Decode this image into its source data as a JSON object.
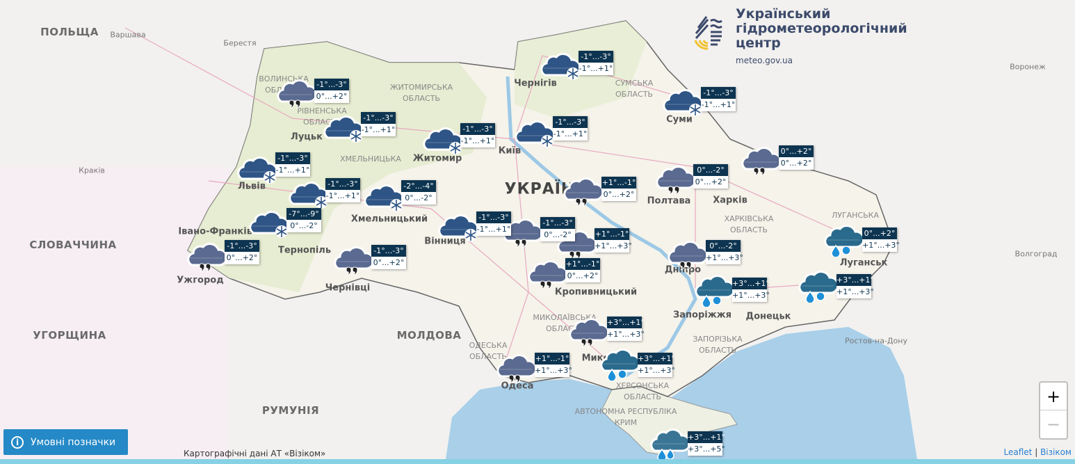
{
  "logo": {
    "line1": "Український",
    "line2": "гідрометеорологічний",
    "line3": "центр",
    "url": "meteo.gov.ua"
  },
  "places": {
    "countries": [
      "ПОЛЬЩА",
      "СЛОВАЧЧИНА",
      "УГОРЩИНА",
      "РУМУНІЯ",
      "МОЛДОВА",
      "УКРАЇНА"
    ],
    "cities": [
      "Варшава",
      "Берестя",
      "Краків",
      "Воронеж",
      "Ростов-на-Дону",
      "Волгоград",
      "Луцьк",
      "Житомир",
      "Київ",
      "Чернігів",
      "Суми",
      "Полтава",
      "Харків",
      "Дніпро",
      "Запоріжжя",
      "Донецьк",
      "Луганськ",
      "Одеса",
      "Миколаїв",
      "Вінниця",
      "Чернівці",
      "Ужгород",
      "Львів",
      "Тернопіль",
      "Івано-Франківськ",
      "Хмельницький",
      "Кропивницький"
    ],
    "regions": [
      "СУМСЬКА ОБЛАСТЬ",
      "ХАРКІВСЬКА ОБЛАСТЬ",
      "ЗАПОРІЗЬКА ОБЛАСТЬ",
      "ЛУГАНСЬКА",
      "МИКОЛАЇВСЬКА ОБЛАСТЬ",
      "ОДЕСЬКА ОБЛАСТЬ",
      "ХЕРСОНСЬКА ОБЛАСТЬ",
      "ЖИТОМИРСЬКА ОБЛАСТЬ",
      "РІВНЕНСЬКА ОБЛАСТЬ",
      "ВОЛИНСЬКА ОБЛАСТЬ",
      "ХМЕЛЬНИЦЬКА",
      "АВТОНОМНА РЕСПУБЛІКА КРИМ"
    ]
  },
  "markers": [
    {
      "icon": "cloud-drizzle",
      "night": "-1°...-3°",
      "day": "0°...+2°"
    },
    {
      "icon": "cloud-snow",
      "night": "-1°...-3°",
      "day": "-1°...+1°"
    },
    {
      "icon": "cloud-snow",
      "night": "-1°...-3°",
      "day": "-1°...+1°"
    },
    {
      "icon": "cloud-snow",
      "night": "-1°...-3°",
      "day": "-1°...+1°"
    },
    {
      "icon": "cloud-snow",
      "night": "-1°...-3°",
      "day": "-1°...+1°"
    },
    {
      "icon": "cloud-snow",
      "night": "-2°...-4°",
      "day": "0°...-2°"
    },
    {
      "icon": "cloud-snow",
      "night": "-7°...-9°",
      "day": "0°...-2°"
    },
    {
      "icon": "cloud-drizzle",
      "night": "-1°...-3°",
      "day": "0°...+2°"
    },
    {
      "icon": "cloud-drizzle",
      "night": "-1°...-3°",
      "day": "0°...+2°"
    },
    {
      "icon": "cloud-snow",
      "night": "-1°...-3°",
      "day": "-1°...+1°"
    },
    {
      "icon": "cloud-drizzle",
      "night": "-1°...-3°",
      "day": "0°...-2°"
    },
    {
      "icon": "cloud-drizzle",
      "night": "+1°...-1°",
      "day": "+1°...+3°"
    },
    {
      "icon": "cloud-drizzle",
      "night": "+1°...-1°",
      "day": "0°...+2°"
    },
    {
      "icon": "cloud-snow",
      "night": "-1°...-3°",
      "day": "-1°...+1°"
    },
    {
      "icon": "cloud-snow",
      "night": "-1°...-3°",
      "day": "-1°...+1°"
    },
    {
      "icon": "cloud-snow",
      "night": "-1°...-3°",
      "day": "-1°...+1°"
    },
    {
      "icon": "cloud-drizzle",
      "night": "+1°...-1°",
      "day": "0°...+2°"
    },
    {
      "icon": "cloud-drizzle",
      "night": "0°...-2°",
      "day": "0°...+2°"
    },
    {
      "icon": "cloud-drizzle",
      "night": "0°...+2°",
      "day": "0°...+2°"
    },
    {
      "icon": "cloud-drizzle",
      "night": "0°...-2°",
      "day": "+1°...+3°"
    },
    {
      "icon": "cloud-rain-snow",
      "night": "+3°...+1°",
      "day": "+1°...+3°"
    },
    {
      "icon": "cloud-rain-snow",
      "night": "+3°...+1°",
      "day": "+1°...+3°"
    },
    {
      "icon": "cloud-rain-snow",
      "night": "0°...+2°",
      "day": "+1°...+3°"
    },
    {
      "icon": "cloud-drizzle",
      "night": "+3°...+1°",
      "day": "+1°...+3°"
    },
    {
      "icon": "cloud-drizzle",
      "night": "+1°...-1°",
      "day": "+1°...+3°"
    },
    {
      "icon": "cloud-rain-snow",
      "night": "+3°...+1°",
      "day": "+1°...+3°"
    },
    {
      "icon": "cloud-rain",
      "night": "+3°...+1°",
      "day": "+3°...+5°"
    }
  ],
  "colors": {
    "label_dark": "#0d3450",
    "snow_cloud": "#2e5585",
    "drizzle_cloud": "#5a6a90",
    "rain_cloud": "#2a6a8c",
    "button": "#2489c6",
    "sea": "#a9cfe9"
  },
  "legend_button": {
    "label": "Умовні позначки",
    "icon": "info-icon"
  },
  "attribution": "Картографічні дані АТ «Візіком»",
  "leaflet_attr": {
    "leaflet": "Leaflet",
    "sep": "|",
    "vizicom": "Візіком"
  },
  "zoom": {
    "in": "+",
    "out": "−"
  }
}
